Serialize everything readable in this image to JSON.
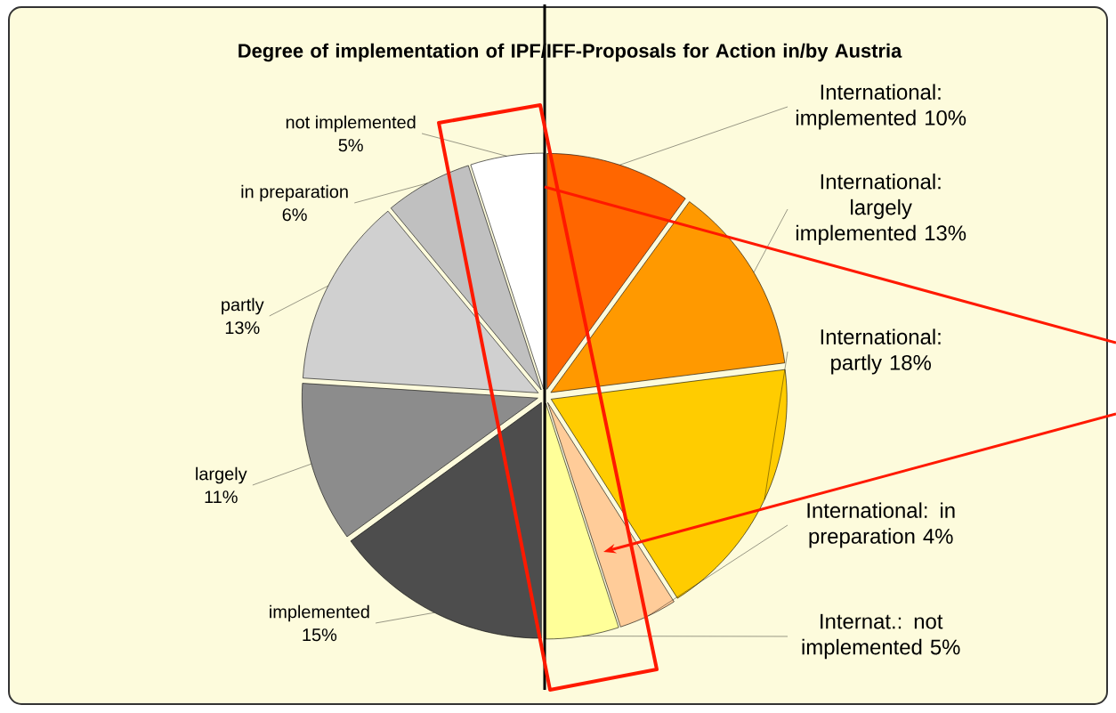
{
  "chart_data": {
    "type": "pie",
    "title": "Degree of implementation of IPF/IFF-Proposals for Action in/by Austria",
    "categories": [
      "International: implemented",
      "International: largely implemented",
      "International: partly",
      "International: in preparation",
      "Internat.: not implemented",
      "implemented",
      "largely",
      "partly",
      "in preparation",
      "not implemented"
    ],
    "values": [
      10,
      13,
      18,
      4,
      5,
      15,
      11,
      13,
      6,
      5
    ],
    "value_labels": [
      "10%",
      "13%",
      "18%",
      "4%",
      "5%",
      "15%",
      "11%",
      "13%",
      "6%",
      "5%"
    ],
    "colors": [
      "#ff6600",
      "#ff9900",
      "#ffcc00",
      "#ffcc99",
      "#ffff99",
      "#4d4d4d",
      "#8c8c8c",
      "#d0d0d0",
      "#c0c0c0",
      "#ffffff"
    ]
  }
}
